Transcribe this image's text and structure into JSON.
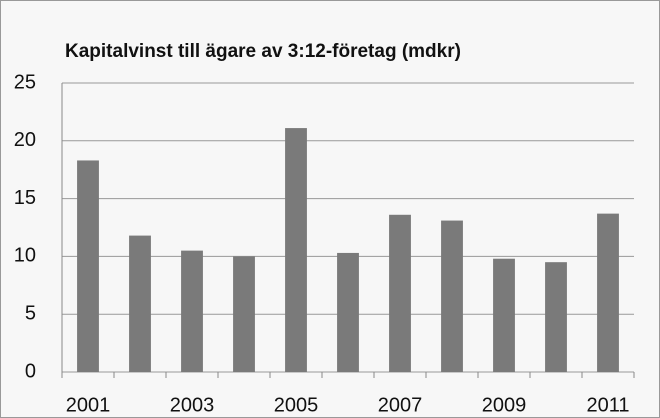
{
  "chart_data": {
    "type": "bar",
    "title": "Kapitalvinst till ägare av 3:12-företag (mdkr)",
    "categories": [
      "2001",
      null,
      "2003",
      null,
      "2005",
      null,
      "2007",
      null,
      "2009",
      null,
      "2011"
    ],
    "values": [
      18.3,
      11.8,
      10.5,
      10.0,
      21.1,
      10.3,
      13.6,
      13.1,
      9.8,
      9.5,
      13.7
    ],
    "color": "#7a7a7a",
    "ylim": [
      0,
      25
    ],
    "yticks": [
      0,
      5,
      10,
      15,
      20,
      25
    ],
    "grid": true
  }
}
